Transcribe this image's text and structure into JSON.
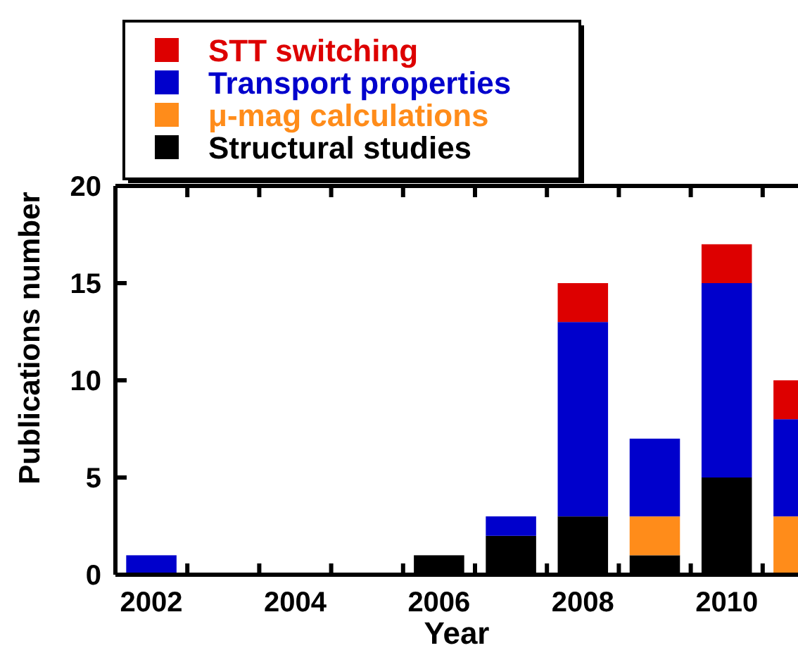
{
  "chart_data": {
    "type": "bar",
    "stacked": true,
    "xlabel": "Year",
    "ylabel": "Publications number",
    "categories": [
      "2002",
      null,
      "2004",
      null,
      "2006",
      null,
      "2008",
      null,
      "2010",
      null
    ],
    "series": [
      {
        "name": "Structural studies",
        "color": "#000000",
        "values": [
          0,
          0,
          0,
          0,
          1,
          2,
          3,
          1,
          5,
          0
        ]
      },
      {
        "name": "μ-mag calculations",
        "color": "#ff8c1a",
        "values": [
          0,
          0,
          0,
          0,
          0,
          0,
          0,
          2,
          0,
          3
        ]
      },
      {
        "name": "Transport properties",
        "color": "#0000cc",
        "values": [
          1,
          0,
          0,
          0,
          0,
          1,
          10,
          4,
          10,
          5
        ]
      },
      {
        "name": "STT switching",
        "color": "#dd0000",
        "values": [
          0,
          0,
          0,
          0,
          0,
          0,
          2,
          0,
          2,
          2
        ]
      }
    ],
    "ylim": [
      0,
      20
    ],
    "yticks": [
      0,
      5,
      10,
      15,
      20
    ],
    "legend": "top left",
    "grid": false
  }
}
